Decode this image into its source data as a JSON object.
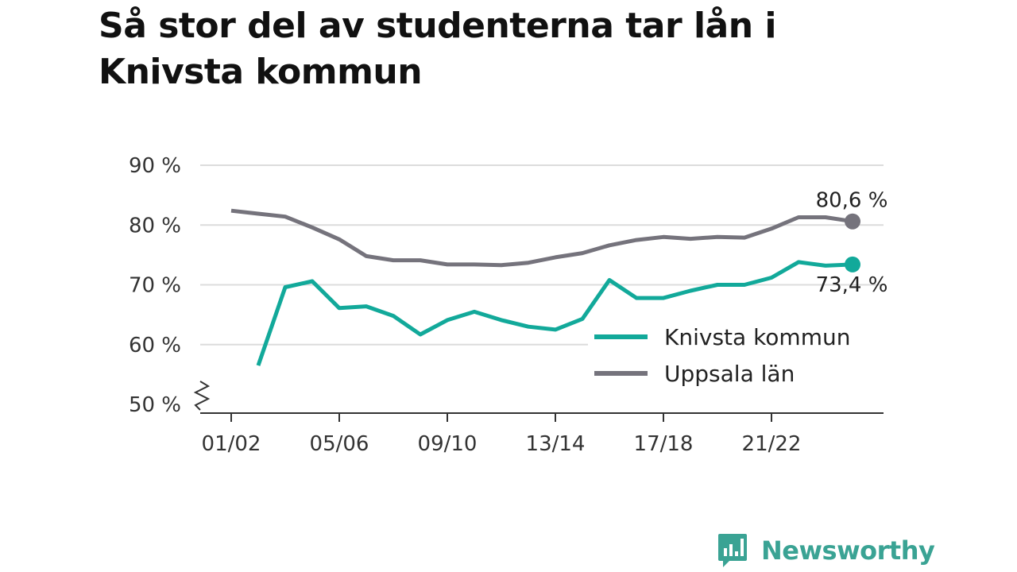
{
  "title": "Så stor del av studenterna tar lån i Knivsta kommun",
  "brand": {
    "name": "Newsworthy",
    "logo_icon": "newsworthy-chart-bubble-icon"
  },
  "colors": {
    "knivsta": "#12a99a",
    "uppsala": "#75737c",
    "grid": "#dcdcdc",
    "axis": "#333333",
    "brand": "#3aa394"
  },
  "chart_data": {
    "type": "line",
    "title": "Så stor del av studenterna tar lån i Knivsta kommun",
    "xlabel": "",
    "ylabel": "",
    "ylim": [
      50,
      90
    ],
    "yticks": [
      50,
      60,
      70,
      80,
      90
    ],
    "ytick_labels": [
      "50 %",
      "60 %",
      "70 %",
      "80 %",
      "90 %"
    ],
    "y_axis_break": true,
    "grid": true,
    "x": [
      "01/02",
      "02/03",
      "03/04",
      "04/05",
      "05/06",
      "06/07",
      "07/08",
      "08/09",
      "09/10",
      "10/11",
      "11/12",
      "12/13",
      "13/14",
      "14/15",
      "15/16",
      "16/17",
      "17/18",
      "18/19",
      "19/20",
      "20/21",
      "21/22",
      "22/23",
      "23/24",
      "24/25"
    ],
    "xtick_labels": [
      "01/02",
      "05/06",
      "09/10",
      "13/14",
      "17/18",
      "21/22"
    ],
    "legend_position": "bottom-right",
    "series": [
      {
        "name": "Knivsta kommun",
        "color": "#12a99a",
        "values": [
          null,
          56.5,
          69.6,
          70.6,
          66.1,
          66.4,
          64.8,
          61.7,
          64.1,
          65.5,
          64.1,
          63.0,
          62.5,
          64.3,
          70.8,
          67.8,
          67.8,
          69.0,
          70.0,
          70.0,
          71.2,
          73.8,
          73.2,
          73.4
        ],
        "end_label": "73,4 %"
      },
      {
        "name": "Uppsala län",
        "color": "#75737c",
        "values": [
          82.4,
          81.9,
          81.4,
          79.6,
          77.6,
          74.8,
          74.1,
          74.1,
          73.4,
          73.4,
          73.3,
          73.7,
          74.6,
          75.3,
          76.6,
          77.5,
          78.0,
          77.7,
          78.0,
          77.9,
          79.4,
          81.3,
          81.3,
          80.6
        ],
        "end_label": "80,6 %"
      }
    ]
  }
}
